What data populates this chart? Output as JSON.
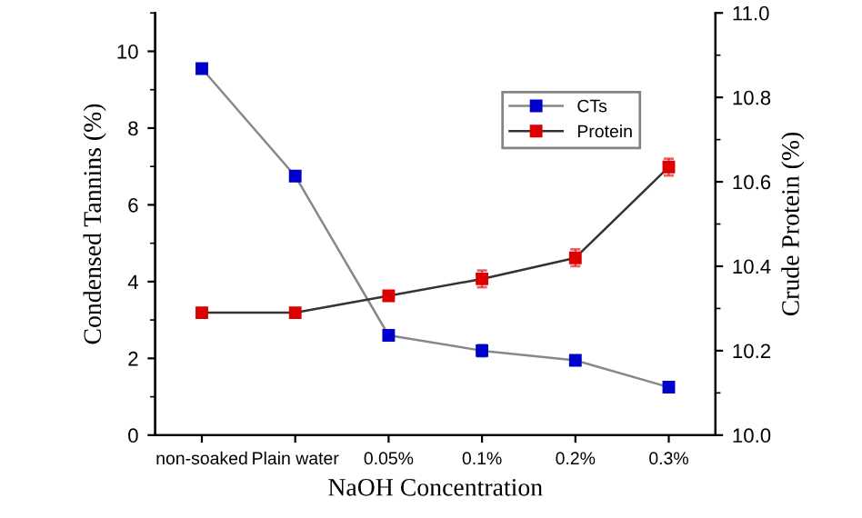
{
  "chart_data": {
    "type": "line",
    "xlabel": "NaOH Concentration",
    "ylabel": "Condensed Tannins (%)",
    "y2label": "Crude Protein (%)",
    "categories": [
      "non-soaked",
      "Plain water",
      "0.05%",
      "0.1%",
      "0.2%",
      "0.3%"
    ],
    "series": [
      {
        "name": "CTs",
        "color": "#0000cc",
        "values": [
          9.55,
          6.75,
          2.6,
          2.2,
          1.95,
          1.25
        ],
        "errors": [
          null,
          null,
          null,
          0.15,
          null,
          null
        ]
      },
      {
        "name": "Protein",
        "color": "#dd0000",
        "axis": "y2",
        "values": [
          10.29,
          10.29,
          10.33,
          10.37,
          10.42,
          10.635
        ],
        "errors": [
          null,
          null,
          0.01,
          0.02,
          0.02,
          0.02
        ]
      }
    ],
    "ylim": [
      0,
      11
    ],
    "yticks": [
      0,
      2,
      4,
      6,
      8,
      10
    ],
    "y2lim": [
      10.0,
      11.0
    ],
    "y2ticks": [
      {
        "value": 10.0,
        "label": "10.0"
      },
      {
        "value": 10.2,
        "label": "10.2"
      },
      {
        "value": 10.4,
        "label": "10.4"
      },
      {
        "value": 10.6,
        "label": "10.6"
      },
      {
        "value": 10.8,
        "label": "10.8"
      },
      {
        "value": 11.0,
        "label": "11.0"
      }
    ],
    "marker": "square",
    "line_style": "solid",
    "grid": false,
    "legend": "top right"
  }
}
